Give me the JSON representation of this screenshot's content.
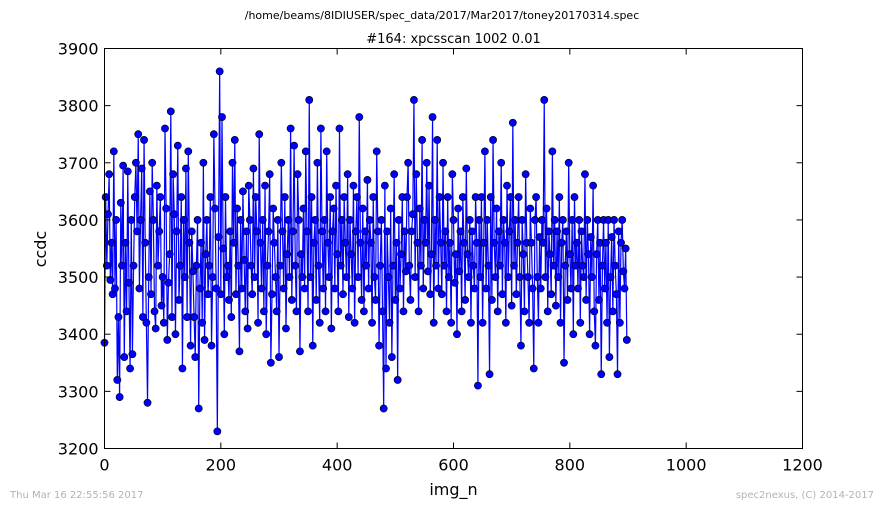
{
  "suptitle": "/home/beams/8IDIUSER/spec_data/2017/Mar2017/toney20170314.spec",
  "footer_left": "Thu Mar 16 22:55:56 2017",
  "footer_right": "spec2nexus, (C) 2014-2017",
  "colors": {
    "series": "#0000ff",
    "text": "#000000",
    "footer": "#b3b3b3"
  },
  "chart_data": {
    "type": "line",
    "title": "#164: xpcsscan 1002 0.01",
    "xlabel": "img_n",
    "ylabel": "ccdc",
    "xlim": [
      0,
      1200
    ],
    "ylim": [
      3200,
      3900
    ],
    "xticks": [
      0,
      200,
      400,
      600,
      800,
      1000,
      1200
    ],
    "yticks": [
      3200,
      3300,
      3400,
      3500,
      3600,
      3700,
      3800,
      3900
    ],
    "grid": false,
    "marker": "circle",
    "series": [
      {
        "x_start": 0,
        "x_step": 2,
        "values": [
          3385,
          3640,
          3520,
          3610,
          3680,
          3495,
          3560,
          3470,
          3720,
          3480,
          3600,
          3320,
          3430,
          3290,
          3630,
          3520,
          3695,
          3360,
          3560,
          3440,
          3685,
          3490,
          3340,
          3600,
          3365,
          3520,
          3640,
          3700,
          3580,
          3750,
          3480,
          3600,
          3690,
          3430,
          3740,
          3560,
          3420,
          3280,
          3500,
          3650,
          3470,
          3700,
          3600,
          3440,
          3410,
          3660,
          3520,
          3580,
          3640,
          3450,
          3500,
          3420,
          3760,
          3620,
          3390,
          3490,
          3540,
          3790,
          3430,
          3680,
          3610,
          3400,
          3580,
          3730,
          3460,
          3520,
          3640,
          3340,
          3600,
          3500,
          3690,
          3430,
          3720,
          3560,
          3380,
          3580,
          3510,
          3430,
          3360,
          3520,
          3600,
          3270,
          3480,
          3560,
          3420,
          3700,
          3390,
          3540,
          3600,
          3470,
          3520,
          3640,
          3380,
          3500,
          3750,
          3620,
          3480,
          3230,
          3570,
          3860,
          3470,
          3780,
          3550,
          3400,
          3640,
          3500,
          3520,
          3460,
          3580,
          3430,
          3700,
          3560,
          3740,
          3470,
          3620,
          3520,
          3370,
          3600,
          3480,
          3650,
          3530,
          3440,
          3580,
          3410,
          3660,
          3600,
          3520,
          3470,
          3690,
          3500,
          3640,
          3580,
          3420,
          3750,
          3560,
          3480,
          3600,
          3440,
          3660,
          3400,
          3520,
          3580,
          3680,
          3350,
          3470,
          3620,
          3560,
          3500,
          3440,
          3600,
          3360,
          3520,
          3700,
          3580,
          3480,
          3640,
          3410,
          3540,
          3600,
          3500,
          3760,
          3460,
          3580,
          3730,
          3520,
          3440,
          3680,
          3600,
          3370,
          3540,
          3500,
          3620,
          3480,
          3720,
          3580,
          3440,
          3810,
          3500,
          3640,
          3380,
          3560,
          3600,
          3460,
          3700,
          3520,
          3420,
          3760,
          3580,
          3480,
          3600,
          3440,
          3720,
          3560,
          3500,
          3640,
          3410,
          3580,
          3620,
          3480,
          3660,
          3540,
          3440,
          3760,
          3520,
          3600,
          3470,
          3640,
          3560,
          3500,
          3680,
          3430,
          3600,
          3540,
          3480,
          3660,
          3420,
          3580,
          3640,
          3500,
          3780,
          3560,
          3460,
          3620,
          3440,
          3580,
          3520,
          3670,
          3480,
          3600,
          3560,
          3420,
          3640,
          3500,
          3460,
          3720,
          3580,
          3380,
          3520,
          3600,
          3440,
          3270,
          3660,
          3340,
          3580,
          3500,
          3420,
          3620,
          3360,
          3520,
          3680,
          3460,
          3560,
          3320,
          3600,
          3480,
          3540,
          3640,
          3440,
          3580,
          3510,
          3640,
          3700,
          3520,
          3460,
          3580,
          3610,
          3810,
          3500,
          3680,
          3560,
          3440,
          3620,
          3520,
          3740,
          3480,
          3600,
          3560,
          3700,
          3510,
          3660,
          3470,
          3540,
          3780,
          3420,
          3600,
          3520,
          3740,
          3480,
          3640,
          3560,
          3470,
          3700,
          3520,
          3580,
          3440,
          3640,
          3500,
          3560,
          3420,
          3680,
          3600,
          3490,
          3540,
          3400,
          3620,
          3510,
          3580,
          3440,
          3640,
          3560,
          3460,
          3690,
          3540,
          3500,
          3600,
          3420,
          3580,
          3520,
          3480,
          3640,
          3560,
          3310,
          3600,
          3500,
          3640,
          3420,
          3560,
          3720,
          3480,
          3600,
          3520,
          3330,
          3640,
          3460,
          3740,
          3560,
          3500,
          3620,
          3440,
          3580,
          3520,
          3700,
          3470,
          3600,
          3560,
          3420,
          3660,
          3500,
          3580,
          3640,
          3450,
          3770,
          3520,
          3600,
          3470,
          3560,
          3640,
          3500,
          3380,
          3600,
          3540,
          3440,
          3680,
          3560,
          3500,
          3420,
          3620,
          3560,
          3480,
          3340,
          3600,
          3640,
          3500,
          3420,
          3570,
          3480,
          3600,
          3560,
          3810,
          3500,
          3620,
          3440,
          3580,
          3540,
          3470,
          3720,
          3520,
          3600,
          3450,
          3580,
          3500,
          3640,
          3420,
          3560,
          3600,
          3350,
          3520,
          3580,
          3460,
          3700,
          3540,
          3480,
          3600,
          3400,
          3640,
          3520,
          3560,
          3480,
          3600,
          3420,
          3580,
          3520,
          3500,
          3680,
          3460,
          3600,
          3540,
          3400,
          3570,
          3500,
          3660,
          3440,
          3380,
          3540,
          3600,
          3460,
          3560,
          3330,
          3520,
          3600,
          3480,
          3560,
          3420,
          3600,
          3360,
          3500,
          3570,
          3440,
          3600,
          3520,
          3470,
          3330,
          3580,
          3420,
          3560,
          3600,
          3510,
          3480,
          3550,
          3390
        ]
      }
    ]
  }
}
